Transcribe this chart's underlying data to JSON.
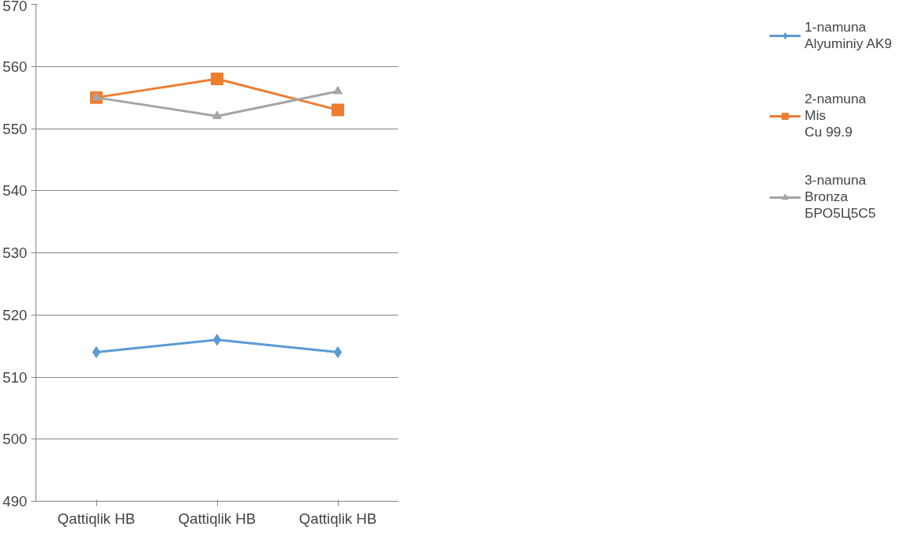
{
  "chart_data": {
    "type": "line",
    "categories": [
      "Qattiqlik HB",
      "Qattiqlik HB",
      "Qattiqlik HB"
    ],
    "series": [
      {
        "name": "1-namuna\nAlyuminiy AK9",
        "color": "#5b9bd5",
        "marker": "diamond",
        "values": [
          514,
          516,
          514
        ]
      },
      {
        "name": "2-namuna\nMis\nCu 99.9",
        "color": "#ed7d31",
        "marker": "square",
        "values": [
          555,
          558,
          553
        ]
      },
      {
        "name": "3-namuna\nBronza\nБРО5Ц5С5",
        "color": "#a5a5a5",
        "marker": "triangle",
        "values": [
          555,
          552,
          556
        ]
      }
    ],
    "ylim": [
      490,
      570
    ],
    "yticks": [
      490,
      500,
      510,
      520,
      530,
      540,
      550,
      560,
      570
    ],
    "grid": "y",
    "legend": "right"
  }
}
